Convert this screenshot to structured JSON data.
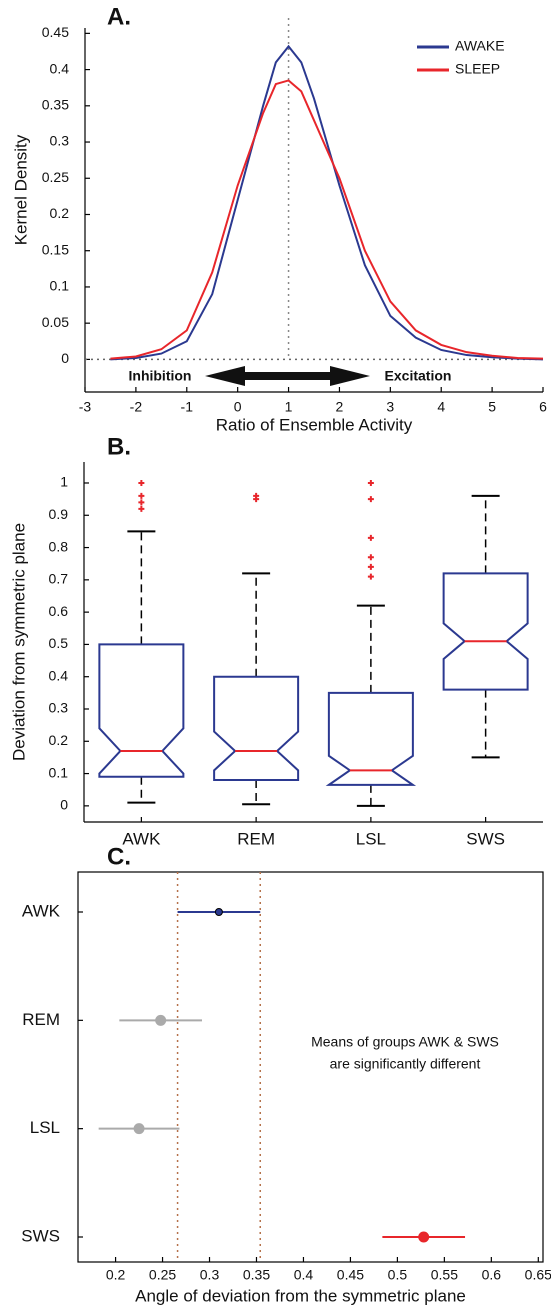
{
  "chart_data": [
    {
      "type": "line",
      "title": "A.",
      "xlabel": "Ratio of Ensemble Activity",
      "ylabel": "Kernel Density",
      "x": [
        -2.5,
        -2,
        -1.5,
        -1,
        -0.5,
        0,
        0.5,
        0.75,
        1,
        1.25,
        1.5,
        2,
        2.5,
        3,
        3.5,
        4,
        4.5,
        5,
        5.5,
        6
      ],
      "series": [
        {
          "name": "AWAKE",
          "color": "#2b3990",
          "values": [
            0,
            0.002,
            0.008,
            0.025,
            0.09,
            0.22,
            0.35,
            0.41,
            0.432,
            0.41,
            0.36,
            0.24,
            0.13,
            0.06,
            0.03,
            0.013,
            0.006,
            0.003,
            0.001,
            0
          ]
        },
        {
          "name": "SLEEP",
          "color": "#e8262b",
          "values": [
            0.001,
            0.004,
            0.014,
            0.04,
            0.12,
            0.24,
            0.34,
            0.38,
            0.385,
            0.37,
            0.33,
            0.25,
            0.15,
            0.08,
            0.04,
            0.02,
            0.01,
            0.005,
            0.002,
            0.001
          ]
        }
      ],
      "xlim": [
        -3,
        6
      ],
      "ylim": [
        -0.045,
        0.485
      ],
      "xticks": [
        -3,
        -2,
        -1,
        0,
        1,
        2,
        3,
        4,
        5,
        6
      ],
      "yticks": [
        0,
        0.05,
        0.1,
        0.15,
        0.2,
        0.25,
        0.3,
        0.35,
        0.4,
        0.45
      ],
      "vline": 1,
      "hline": 0,
      "annotations": [
        "Inhibition",
        "Excitation"
      ],
      "legend": "upper right"
    },
    {
      "type": "box",
      "title": "B.",
      "ylabel": "Deviation from symmetric plane",
      "categories": [
        "AWK",
        "REM",
        "LSL",
        "SWS"
      ],
      "boxes": [
        {
          "whislo": 0.01,
          "q1": 0.09,
          "notch_lo": 0.1,
          "med": 0.17,
          "notch_hi": 0.24,
          "q3": 0.5,
          "whishi": 0.85,
          "outliers": [
            0.92,
            0.94,
            0.96,
            1.0
          ]
        },
        {
          "whislo": 0.005,
          "q1": 0.08,
          "notch_lo": 0.11,
          "med": 0.17,
          "notch_hi": 0.23,
          "q3": 0.4,
          "whishi": 0.72,
          "outliers": [
            0.95,
            0.96
          ]
        },
        {
          "whislo": 0,
          "q1": 0.065,
          "notch_lo": 0.065,
          "med": 0.11,
          "notch_hi": 0.155,
          "q3": 0.35,
          "whishi": 0.62,
          "outliers": [
            0.71,
            0.74,
            0.77,
            0.83,
            0.95,
            1.0
          ]
        },
        {
          "whislo": 0.15,
          "q1": 0.36,
          "notch_lo": 0.455,
          "med": 0.51,
          "notch_hi": 0.565,
          "q3": 0.72,
          "whishi": 0.96,
          "outliers": []
        }
      ],
      "box_color": "#2b3990",
      "median_color": "#e8262b",
      "outlier_color": "#e8262b",
      "ylim": [
        -0.05,
        1.065
      ],
      "yticks": [
        0,
        0.1,
        0.2,
        0.3,
        0.4,
        0.5,
        0.6,
        0.7,
        0.8,
        0.9,
        1
      ]
    },
    {
      "type": "errorbar",
      "title": "C.",
      "xlabel": "Angle of deviation from the symmetric plane",
      "categories": [
        "AWK",
        "REM",
        "LSL",
        "SWS"
      ],
      "values": [
        0.31,
        0.248,
        0.225,
        0.528
      ],
      "errors": [
        0.044,
        0.044,
        0.043,
        0.044
      ],
      "colors": [
        "#2b3990",
        "#aaaaaa",
        "#aaaaaa",
        "#e8262b"
      ],
      "xlim": [
        0.16,
        0.655
      ],
      "xticks": [
        0.2,
        0.25,
        0.3,
        0.35,
        0.4,
        0.45,
        0.5,
        0.55,
        0.6,
        0.65
      ],
      "vlines": [
        0.266,
        0.354
      ],
      "annotations": [
        "Means of groups AWK & SWS",
        "are significantly different"
      ]
    }
  ]
}
